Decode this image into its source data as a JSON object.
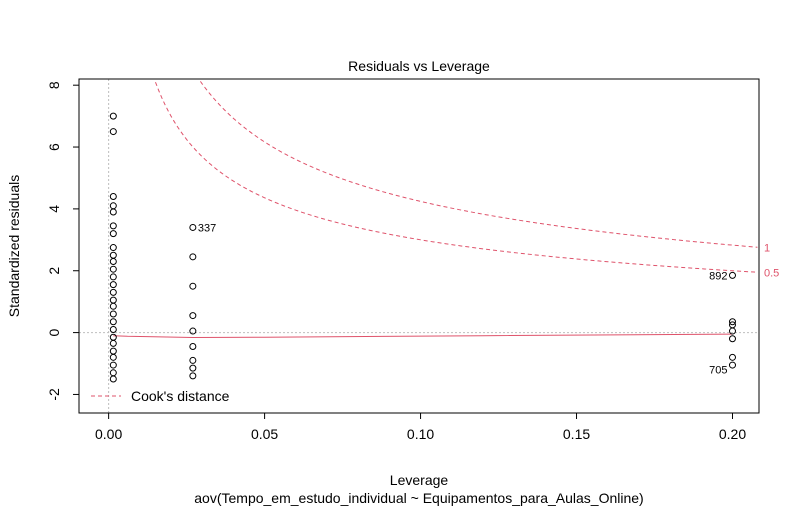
{
  "chart_data": {
    "type": "scatter",
    "title": "Residuals vs Leverage",
    "xlabel": "Leverage",
    "subtitle": "aov(Tempo_em_estudo_individual ~ Equipamentos_para_Aulas_Online)",
    "ylabel": "Standardized residuals",
    "xlim": [
      -0.0095,
      0.2085
    ],
    "ylim": [
      -2.6,
      8.2
    ],
    "xticks": [
      0.0,
      0.05,
      0.1,
      0.15,
      0.2
    ],
    "xtick_labels": [
      "0.00",
      "0.05",
      "0.10",
      "0.15",
      "0.20"
    ],
    "yticks": [
      -2,
      0,
      2,
      4,
      6,
      8
    ],
    "ytick_labels": [
      "-2",
      "0",
      "2",
      "4",
      "6",
      "8"
    ],
    "points": [
      {
        "x": 0.0015,
        "y": 7.0
      },
      {
        "x": 0.0015,
        "y": 6.5
      },
      {
        "x": 0.0015,
        "y": 4.4
      },
      {
        "x": 0.0015,
        "y": 4.1
      },
      {
        "x": 0.0015,
        "y": 3.9
      },
      {
        "x": 0.0015,
        "y": 3.45
      },
      {
        "x": 0.0015,
        "y": 3.2
      },
      {
        "x": 0.0015,
        "y": 2.75
      },
      {
        "x": 0.0015,
        "y": 2.5
      },
      {
        "x": 0.0015,
        "y": 2.3
      },
      {
        "x": 0.0015,
        "y": 2.05
      },
      {
        "x": 0.0015,
        "y": 1.8
      },
      {
        "x": 0.0015,
        "y": 1.55
      },
      {
        "x": 0.0015,
        "y": 1.3
      },
      {
        "x": 0.0015,
        "y": 1.05
      },
      {
        "x": 0.0015,
        "y": 0.85
      },
      {
        "x": 0.0015,
        "y": 0.6
      },
      {
        "x": 0.0015,
        "y": 0.35
      },
      {
        "x": 0.0015,
        "y": 0.1
      },
      {
        "x": 0.0015,
        "y": -0.15
      },
      {
        "x": 0.0015,
        "y": -0.35
      },
      {
        "x": 0.0015,
        "y": -0.6
      },
      {
        "x": 0.0015,
        "y": -0.8
      },
      {
        "x": 0.0015,
        "y": -1.05
      },
      {
        "x": 0.0015,
        "y": -1.3
      },
      {
        "x": 0.0015,
        "y": -1.5
      },
      {
        "x": 0.027,
        "y": 3.4
      },
      {
        "x": 0.027,
        "y": 2.45
      },
      {
        "x": 0.027,
        "y": 1.5
      },
      {
        "x": 0.027,
        "y": 0.55
      },
      {
        "x": 0.027,
        "y": 0.05
      },
      {
        "x": 0.027,
        "y": -0.45
      },
      {
        "x": 0.027,
        "y": -0.9
      },
      {
        "x": 0.027,
        "y": -1.15
      },
      {
        "x": 0.027,
        "y": -1.4
      },
      {
        "x": 0.2,
        "y": 1.85
      },
      {
        "x": 0.2,
        "y": 0.35
      },
      {
        "x": 0.2,
        "y": 0.25
      },
      {
        "x": 0.2,
        "y": 0.05
      },
      {
        "x": 0.2,
        "y": -0.2
      },
      {
        "x": 0.2,
        "y": -0.8
      },
      {
        "x": 0.2,
        "y": -1.05
      }
    ],
    "point_labels": [
      {
        "text": "337",
        "x": 0.027,
        "y": 3.4,
        "side": "right"
      },
      {
        "text": "892",
        "x": 0.2,
        "y": 1.85,
        "side": "left"
      },
      {
        "text": "705",
        "x": 0.2,
        "y": -1.2,
        "side": "left"
      }
    ],
    "smoother": {
      "x": [
        0.0015,
        0.006,
        0.027,
        0.05,
        0.12,
        0.2
      ],
      "y": [
        -0.1,
        -0.12,
        -0.16,
        -0.15,
        -0.1,
        -0.05
      ]
    },
    "cooks_contours": [
      {
        "label": "1",
        "k": 1.0
      },
      {
        "label": "0.5",
        "k": 0.5
      }
    ],
    "cooks_p": 2,
    "legend": {
      "label": "Cook's distance",
      "position": "bottom-left"
    },
    "colors": {
      "contour": "#DF536B",
      "smoother": "#DF536B",
      "reference": "#BEBEBE"
    }
  }
}
